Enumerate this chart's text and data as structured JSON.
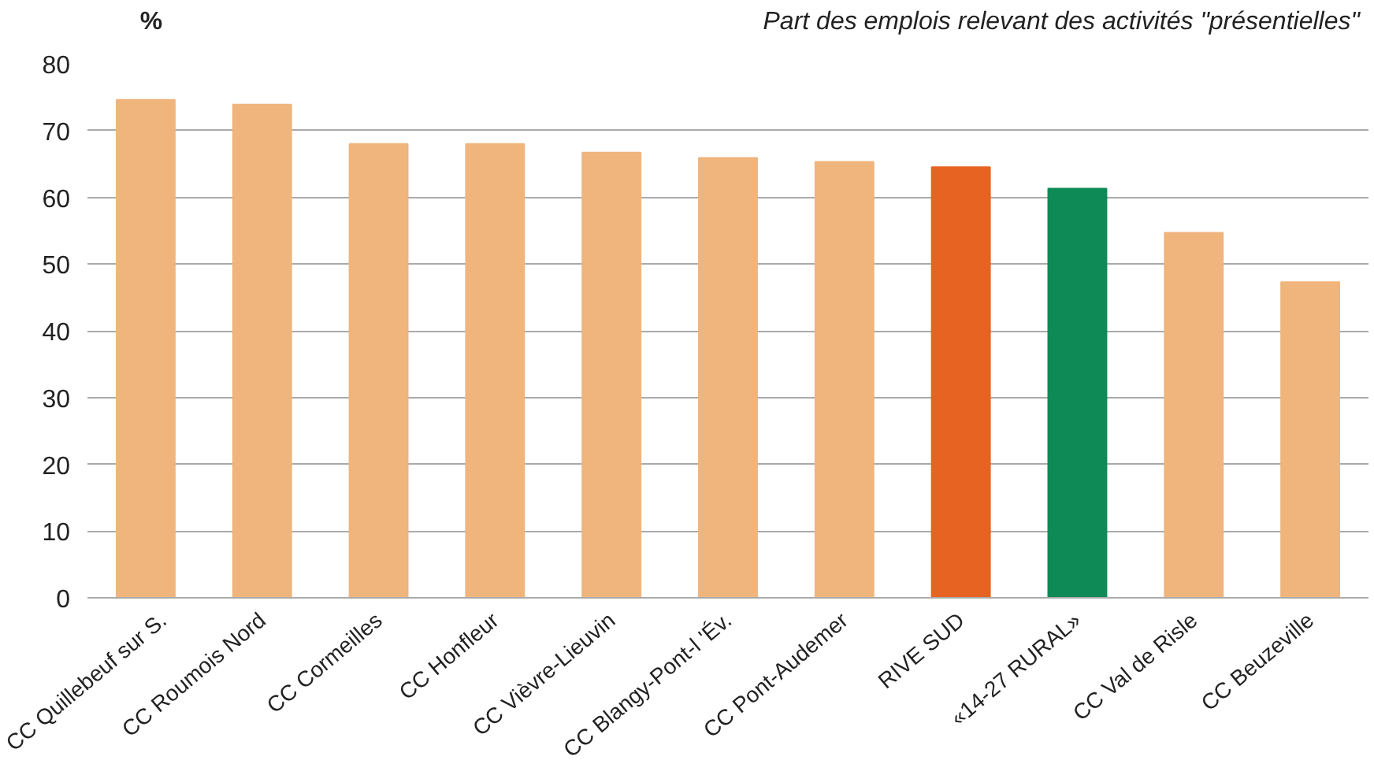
{
  "chart_data": {
    "type": "bar",
    "title": "Part des emplois relevant des activités \"présentielles\"",
    "ylabel": "%",
    "categories": [
      "CC Quillebeuf sur S.",
      "CC Roumois Nord",
      "CC Cormeilles",
      "CC Honfleur",
      "CC Vièvre-Lieuvin",
      "CC Blangy-Pont-l 'Év.",
      "CC Pont-Audemer",
      "RIVE SUD",
      "«14-27 RURAL»",
      "CC Val de Risle",
      "CC Beuzeville"
    ],
    "values": [
      74.6,
      73.9,
      68.0,
      68.0,
      66.7,
      65.9,
      65.3,
      64.5,
      61.3,
      54.7,
      47.3
    ],
    "colors": [
      "#efb57d",
      "#efb57d",
      "#efb57d",
      "#efb57d",
      "#efb57d",
      "#efb57d",
      "#efb57d",
      "#e66321",
      "#0e8a57",
      "#efb57d",
      "#efb57d"
    ],
    "ylim": [
      0,
      80
    ],
    "yticks": [
      0,
      10,
      20,
      30,
      40,
      50,
      60,
      70,
      80
    ],
    "grid": "y"
  }
}
